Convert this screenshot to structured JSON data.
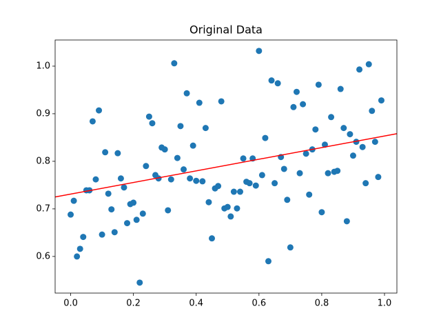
{
  "chart_data": {
    "type": "scatter",
    "title": "Original Data",
    "x": [
      0,
      0.01,
      0.02,
      0.03,
      0.04,
      0.05,
      0.06,
      0.07,
      0.08,
      0.09,
      0.1,
      0.11,
      0.12,
      0.13,
      0.14,
      0.15,
      0.16,
      0.17,
      0.18,
      0.19,
      0.2,
      0.21,
      0.22,
      0.23,
      0.24,
      0.25,
      0.26,
      0.27,
      0.28,
      0.29,
      0.3,
      0.31,
      0.32,
      0.33,
      0.34,
      0.35,
      0.36,
      0.37,
      0.38,
      0.39,
      0.4,
      0.41,
      0.42,
      0.43,
      0.44,
      0.45,
      0.46,
      0.47,
      0.48,
      0.49,
      0.5,
      0.51,
      0.52,
      0.53,
      0.54,
      0.55,
      0.56,
      0.57,
      0.58,
      0.59,
      0.6,
      0.61,
      0.62,
      0.63,
      0.64,
      0.65,
      0.66,
      0.67,
      0.68,
      0.69,
      0.7,
      0.71,
      0.72,
      0.73,
      0.74,
      0.75,
      0.76,
      0.77,
      0.78,
      0.79,
      0.8,
      0.81,
      0.82,
      0.83,
      0.84,
      0.85,
      0.86,
      0.87,
      0.88,
      0.89,
      0.9,
      0.91,
      0.92,
      0.93,
      0.94,
      0.95,
      0.96,
      0.97,
      0.98,
      0.99
    ],
    "series": [
      {
        "color": "#1f77b4",
        "values": [
          0.688,
          0.717,
          0.6,
          0.616,
          0.641,
          0.739,
          0.739,
          0.884,
          0.762,
          0.907,
          0.646,
          0.819,
          0.732,
          0.699,
          0.651,
          0.817,
          0.764,
          0.745,
          0.67,
          0.71,
          0.713,
          0.677,
          0.545,
          0.69,
          0.79,
          0.894,
          0.88,
          0.771,
          0.764,
          0.829,
          0.825,
          0.697,
          0.762,
          1.006,
          0.807,
          0.874,
          0.783,
          0.943,
          0.764,
          0.833,
          0.759,
          0.923,
          0.758,
          0.87,
          0.714,
          0.638,
          0.743,
          0.748,
          0.926,
          0.701,
          0.704,
          0.684,
          0.736,
          0.701,
          0.736,
          0.806,
          0.757,
          0.754,
          0.806,
          0.749,
          1.032,
          0.771,
          0.849,
          0.59,
          0.97,
          0.754,
          0.964,
          0.809,
          0.784,
          0.719,
          0.619,
          0.914,
          0.946,
          0.775,
          0.92,
          0.816,
          0.73,
          0.825,
          0.867,
          0.961,
          0.693,
          0.835,
          0.775,
          0.893,
          0.778,
          0.78,
          0.952,
          0.87,
          0.674,
          0.857,
          0.812,
          0.841,
          0.993,
          0.83,
          0.754,
          1.004,
          0.906,
          0.841,
          0.767,
          0.928
        ]
      }
    ],
    "line": {
      "color": "red",
      "x": [
        -0.0495,
        1.0395
      ],
      "y": [
        0.725,
        0.858
      ]
    },
    "xlim": [
      -0.0495,
      1.0395
    ],
    "ylim": [
      0.523,
      1.055
    ],
    "xticks": [
      {
        "value": 0,
        "label": "0.0"
      },
      0.2,
      0.4,
      0.6,
      0.8,
      {
        "value": 1,
        "label": "1.0"
      }
    ],
    "yticks": [
      0.6,
      0.7,
      0.8,
      0.9,
      {
        "value": 1,
        "label": "1.0"
      }
    ]
  }
}
